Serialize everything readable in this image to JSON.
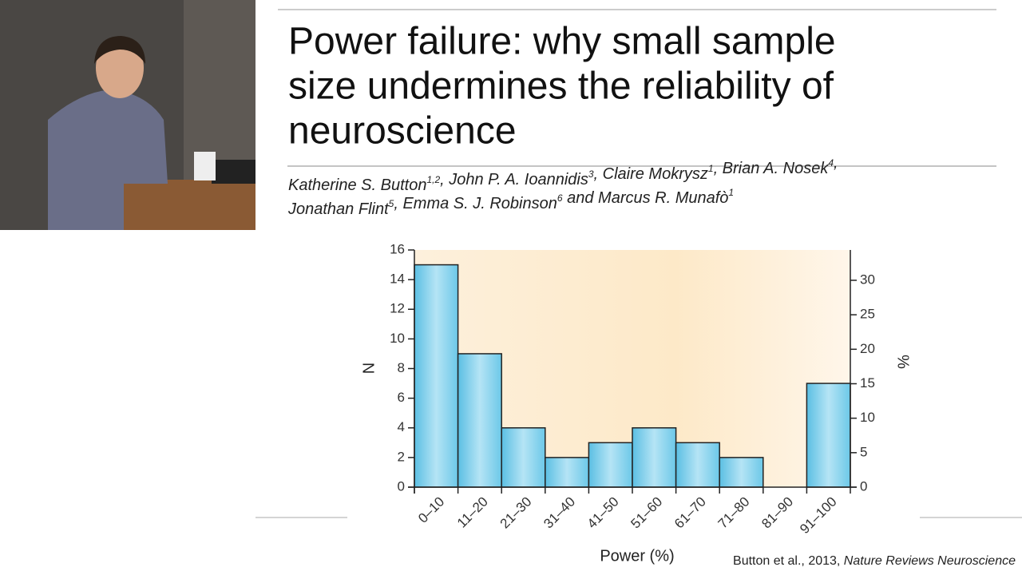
{
  "paper": {
    "title_lines": [
      "Power failure: why small sample",
      "size undermines the reliability of",
      "neuroscience"
    ],
    "author_lines": [
      [
        {
          "name": "Katherine S. Button",
          "sup": "1,2"
        },
        {
          "name": ", John P. A. Ioannidis",
          "sup": "3"
        },
        {
          "name": ", Claire Mokrysz",
          "sup": "1"
        },
        {
          "name": ", Brian A. Nosek",
          "sup": "4"
        },
        {
          "name": ",",
          "sup": null
        }
      ],
      [
        {
          "name": "Jonathan Flint",
          "sup": "5"
        },
        {
          "name": ", Emma S. J. Robinson",
          "sup": "6"
        },
        {
          "name": " and Marcus R. Munafò",
          "sup": "1"
        }
      ]
    ]
  },
  "citation": {
    "text": "Button et al., 2013, ",
    "journal": "Nature Reviews Neuroscience"
  },
  "chart_data": {
    "type": "bar",
    "x_label": "Power (%)",
    "y_label": "N",
    "y2_label": "%",
    "categories": [
      "0–10",
      "11–20",
      "21–30",
      "31–40",
      "41–50",
      "51–60",
      "61–70",
      "71–80",
      "81–90",
      "91–100"
    ],
    "values": [
      15,
      9,
      4,
      2,
      3,
      4,
      3,
      2,
      0,
      7
    ],
    "color": "#8fd3ec",
    "ylim": [
      0,
      16
    ],
    "yticks": [
      0,
      2,
      4,
      6,
      8,
      10,
      12,
      14,
      16
    ],
    "y2lim": [
      0,
      34.4
    ],
    "y2ticks": [
      0,
      5,
      10,
      15,
      20,
      25,
      30
    ]
  }
}
